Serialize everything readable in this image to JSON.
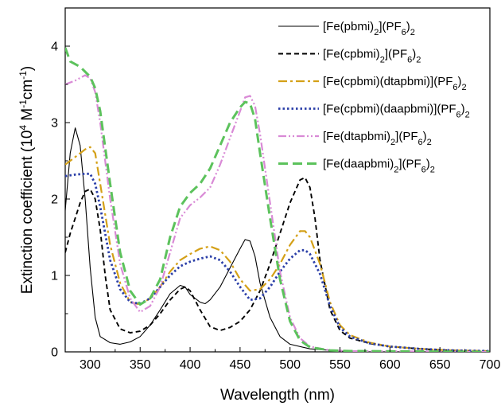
{
  "chart_data": {
    "type": "line",
    "xlabel": "Wavelength (nm)",
    "ylabel": "Extinction coefficient (10⁴ M⁻¹cm⁻¹)",
    "xlim": [
      275,
      700
    ],
    "ylim": [
      0,
      4.5
    ],
    "x_ticks": [
      300,
      350,
      400,
      450,
      500,
      550,
      600,
      650,
      700
    ],
    "y_ticks": [
      0,
      1,
      2,
      3,
      4
    ],
    "legend_position": "top-right",
    "grid": false,
    "series": [
      {
        "name": "[Fe(pbmi)2](PF6)2",
        "label_parts": [
          [
            "[Fe(pbmi)",
            ""
          ],
          [
            "2",
            "sub"
          ],
          [
            "](PF",
            ""
          ],
          [
            "6",
            "sub"
          ],
          [
            ")",
            ""
          ],
          [
            "2",
            "sub"
          ]
        ],
        "color": "#000000",
        "style": "solid",
        "points": [
          [
            275,
            1.85
          ],
          [
            280,
            2.6
          ],
          [
            285,
            2.93
          ],
          [
            290,
            2.7
          ],
          [
            295,
            2.0
          ],
          [
            300,
            1.1
          ],
          [
            305,
            0.45
          ],
          [
            310,
            0.2
          ],
          [
            320,
            0.12
          ],
          [
            330,
            0.1
          ],
          [
            340,
            0.13
          ],
          [
            350,
            0.2
          ],
          [
            360,
            0.35
          ],
          [
            370,
            0.55
          ],
          [
            380,
            0.76
          ],
          [
            390,
            0.87
          ],
          [
            395,
            0.85
          ],
          [
            400,
            0.75
          ],
          [
            410,
            0.65
          ],
          [
            415,
            0.63
          ],
          [
            420,
            0.68
          ],
          [
            430,
            0.85
          ],
          [
            440,
            1.1
          ],
          [
            450,
            1.35
          ],
          [
            455,
            1.47
          ],
          [
            460,
            1.45
          ],
          [
            465,
            1.25
          ],
          [
            470,
            0.9
          ],
          [
            480,
            0.45
          ],
          [
            490,
            0.2
          ],
          [
            500,
            0.1
          ],
          [
            520,
            0.04
          ],
          [
            550,
            0.01
          ],
          [
            580,
            0.0
          ],
          [
            700,
            0.0
          ]
        ]
      },
      {
        "name": "[Fe(cpbmi)2](PF6)2",
        "label_parts": [
          [
            "[Fe(cpbmi)",
            ""
          ],
          [
            "2",
            "sub"
          ],
          [
            "](PF",
            ""
          ],
          [
            "6",
            "sub"
          ],
          [
            ")",
            ""
          ],
          [
            "2",
            "sub"
          ]
        ],
        "color": "#000000",
        "style": "dash",
        "points": [
          [
            275,
            1.3
          ],
          [
            280,
            1.55
          ],
          [
            285,
            1.75
          ],
          [
            290,
            1.95
          ],
          [
            295,
            2.1
          ],
          [
            300,
            2.13
          ],
          [
            305,
            2.0
          ],
          [
            310,
            1.6
          ],
          [
            315,
            1.0
          ],
          [
            320,
            0.55
          ],
          [
            330,
            0.3
          ],
          [
            340,
            0.25
          ],
          [
            350,
            0.27
          ],
          [
            360,
            0.35
          ],
          [
            370,
            0.5
          ],
          [
            380,
            0.68
          ],
          [
            390,
            0.82
          ],
          [
            395,
            0.85
          ],
          [
            400,
            0.8
          ],
          [
            410,
            0.55
          ],
          [
            420,
            0.33
          ],
          [
            430,
            0.28
          ],
          [
            440,
            0.32
          ],
          [
            450,
            0.4
          ],
          [
            460,
            0.55
          ],
          [
            470,
            0.8
          ],
          [
            480,
            1.15
          ],
          [
            490,
            1.55
          ],
          [
            500,
            1.95
          ],
          [
            510,
            2.25
          ],
          [
            515,
            2.28
          ],
          [
            520,
            2.15
          ],
          [
            525,
            1.75
          ],
          [
            530,
            1.2
          ],
          [
            540,
            0.55
          ],
          [
            550,
            0.28
          ],
          [
            560,
            0.18
          ],
          [
            580,
            0.11
          ],
          [
            600,
            0.07
          ],
          [
            630,
            0.04
          ],
          [
            660,
            0.02
          ],
          [
            700,
            0.01
          ]
        ]
      },
      {
        "name": "[Fe(cpbmi)(dtapbmi)](PF6)2",
        "label_parts": [
          [
            "[Fe(cpbmi)(dtapbmi)](PF",
            ""
          ],
          [
            "6",
            "sub"
          ],
          [
            ")",
            ""
          ],
          [
            "2",
            "sub"
          ]
        ],
        "color": "#d4a017",
        "style": "dashdot",
        "points": [
          [
            275,
            2.45
          ],
          [
            285,
            2.55
          ],
          [
            295,
            2.65
          ],
          [
            300,
            2.68
          ],
          [
            305,
            2.6
          ],
          [
            310,
            2.2
          ],
          [
            320,
            1.4
          ],
          [
            330,
            0.9
          ],
          [
            340,
            0.65
          ],
          [
            350,
            0.62
          ],
          [
            360,
            0.7
          ],
          [
            370,
            0.85
          ],
          [
            380,
            1.05
          ],
          [
            390,
            1.2
          ],
          [
            400,
            1.28
          ],
          [
            410,
            1.35
          ],
          [
            420,
            1.38
          ],
          [
            430,
            1.33
          ],
          [
            440,
            1.18
          ],
          [
            450,
            0.95
          ],
          [
            460,
            0.8
          ],
          [
            470,
            0.82
          ],
          [
            480,
            0.95
          ],
          [
            490,
            1.15
          ],
          [
            500,
            1.4
          ],
          [
            510,
            1.58
          ],
          [
            515,
            1.58
          ],
          [
            520,
            1.5
          ],
          [
            530,
            1.15
          ],
          [
            540,
            0.65
          ],
          [
            550,
            0.35
          ],
          [
            560,
            0.22
          ],
          [
            580,
            0.12
          ],
          [
            600,
            0.07
          ],
          [
            630,
            0.04
          ],
          [
            660,
            0.02
          ],
          [
            700,
            0.01
          ]
        ]
      },
      {
        "name": "[Fe(cpbmi)(daapbmi)](PF6)2",
        "label_parts": [
          [
            "[Fe(cpbmi)(daapbmi)](PF",
            ""
          ],
          [
            "6",
            "sub"
          ],
          [
            ")",
            ""
          ],
          [
            "2",
            "sub"
          ]
        ],
        "color": "#2b3fa8",
        "style": "dot",
        "points": [
          [
            275,
            2.3
          ],
          [
            285,
            2.32
          ],
          [
            295,
            2.33
          ],
          [
            300,
            2.33
          ],
          [
            305,
            2.2
          ],
          [
            310,
            1.9
          ],
          [
            320,
            1.2
          ],
          [
            330,
            0.82
          ],
          [
            340,
            0.65
          ],
          [
            350,
            0.63
          ],
          [
            360,
            0.7
          ],
          [
            370,
            0.85
          ],
          [
            380,
            1.0
          ],
          [
            390,
            1.12
          ],
          [
            400,
            1.18
          ],
          [
            410,
            1.22
          ],
          [
            420,
            1.25
          ],
          [
            430,
            1.2
          ],
          [
            440,
            1.05
          ],
          [
            450,
            0.85
          ],
          [
            460,
            0.68
          ],
          [
            470,
            0.7
          ],
          [
            480,
            0.85
          ],
          [
            490,
            1.05
          ],
          [
            500,
            1.22
          ],
          [
            510,
            1.33
          ],
          [
            515,
            1.33
          ],
          [
            520,
            1.28
          ],
          [
            530,
            1.02
          ],
          [
            540,
            0.6
          ],
          [
            550,
            0.32
          ],
          [
            560,
            0.2
          ],
          [
            580,
            0.11
          ],
          [
            600,
            0.07
          ],
          [
            630,
            0.04
          ],
          [
            660,
            0.02
          ],
          [
            700,
            0.01
          ]
        ]
      },
      {
        "name": "[Fe(dtapbmi)2](PF6)2",
        "label_parts": [
          [
            "[Fe(dtapbmi)",
            ""
          ],
          [
            "2",
            "sub"
          ],
          [
            "](PF",
            ""
          ],
          [
            "6",
            "sub"
          ],
          [
            ")",
            ""
          ],
          [
            "2",
            "sub"
          ]
        ],
        "color": "#d98ad6",
        "style": "dashdotdot",
        "points": [
          [
            275,
            3.5
          ],
          [
            285,
            3.55
          ],
          [
            295,
            3.62
          ],
          [
            300,
            3.58
          ],
          [
            305,
            3.4
          ],
          [
            310,
            3.0
          ],
          [
            320,
            2.0
          ],
          [
            330,
            1.15
          ],
          [
            340,
            0.7
          ],
          [
            350,
            0.52
          ],
          [
            360,
            0.6
          ],
          [
            370,
            0.85
          ],
          [
            380,
            1.3
          ],
          [
            390,
            1.75
          ],
          [
            400,
            1.92
          ],
          [
            410,
            2.02
          ],
          [
            420,
            2.15
          ],
          [
            430,
            2.45
          ],
          [
            440,
            2.8
          ],
          [
            450,
            3.15
          ],
          [
            455,
            3.33
          ],
          [
            460,
            3.35
          ],
          [
            465,
            3.22
          ],
          [
            470,
            2.85
          ],
          [
            480,
            1.95
          ],
          [
            490,
            1.05
          ],
          [
            500,
            0.45
          ],
          [
            510,
            0.18
          ],
          [
            520,
            0.07
          ],
          [
            540,
            0.02
          ],
          [
            560,
            0.01
          ],
          [
            700,
            0.0
          ]
        ]
      },
      {
        "name": "[Fe(daapbmi)2](PF6)2",
        "label_parts": [
          [
            "[Fe(daapbmi)",
            ""
          ],
          [
            "2",
            "sub"
          ],
          [
            "](PF",
            ""
          ],
          [
            "6",
            "sub"
          ],
          [
            ")",
            ""
          ],
          [
            "2",
            "sub"
          ]
        ],
        "color": "#5cc25c",
        "style": "longdash",
        "points": [
          [
            275,
            3.98
          ],
          [
            280,
            3.8
          ],
          [
            290,
            3.73
          ],
          [
            300,
            3.6
          ],
          [
            305,
            3.45
          ],
          [
            310,
            3.15
          ],
          [
            320,
            2.2
          ],
          [
            330,
            1.3
          ],
          [
            340,
            0.8
          ],
          [
            350,
            0.62
          ],
          [
            360,
            0.7
          ],
          [
            370,
            0.95
          ],
          [
            380,
            1.5
          ],
          [
            390,
            1.9
          ],
          [
            400,
            2.08
          ],
          [
            410,
            2.2
          ],
          [
            420,
            2.4
          ],
          [
            430,
            2.7
          ],
          [
            440,
            3.0
          ],
          [
            450,
            3.2
          ],
          [
            455,
            3.27
          ],
          [
            460,
            3.25
          ],
          [
            465,
            3.05
          ],
          [
            470,
            2.6
          ],
          [
            480,
            1.75
          ],
          [
            490,
            0.95
          ],
          [
            500,
            0.4
          ],
          [
            510,
            0.15
          ],
          [
            520,
            0.06
          ],
          [
            540,
            0.02
          ],
          [
            560,
            0.01
          ],
          [
            700,
            0.0
          ]
        ]
      }
    ]
  }
}
